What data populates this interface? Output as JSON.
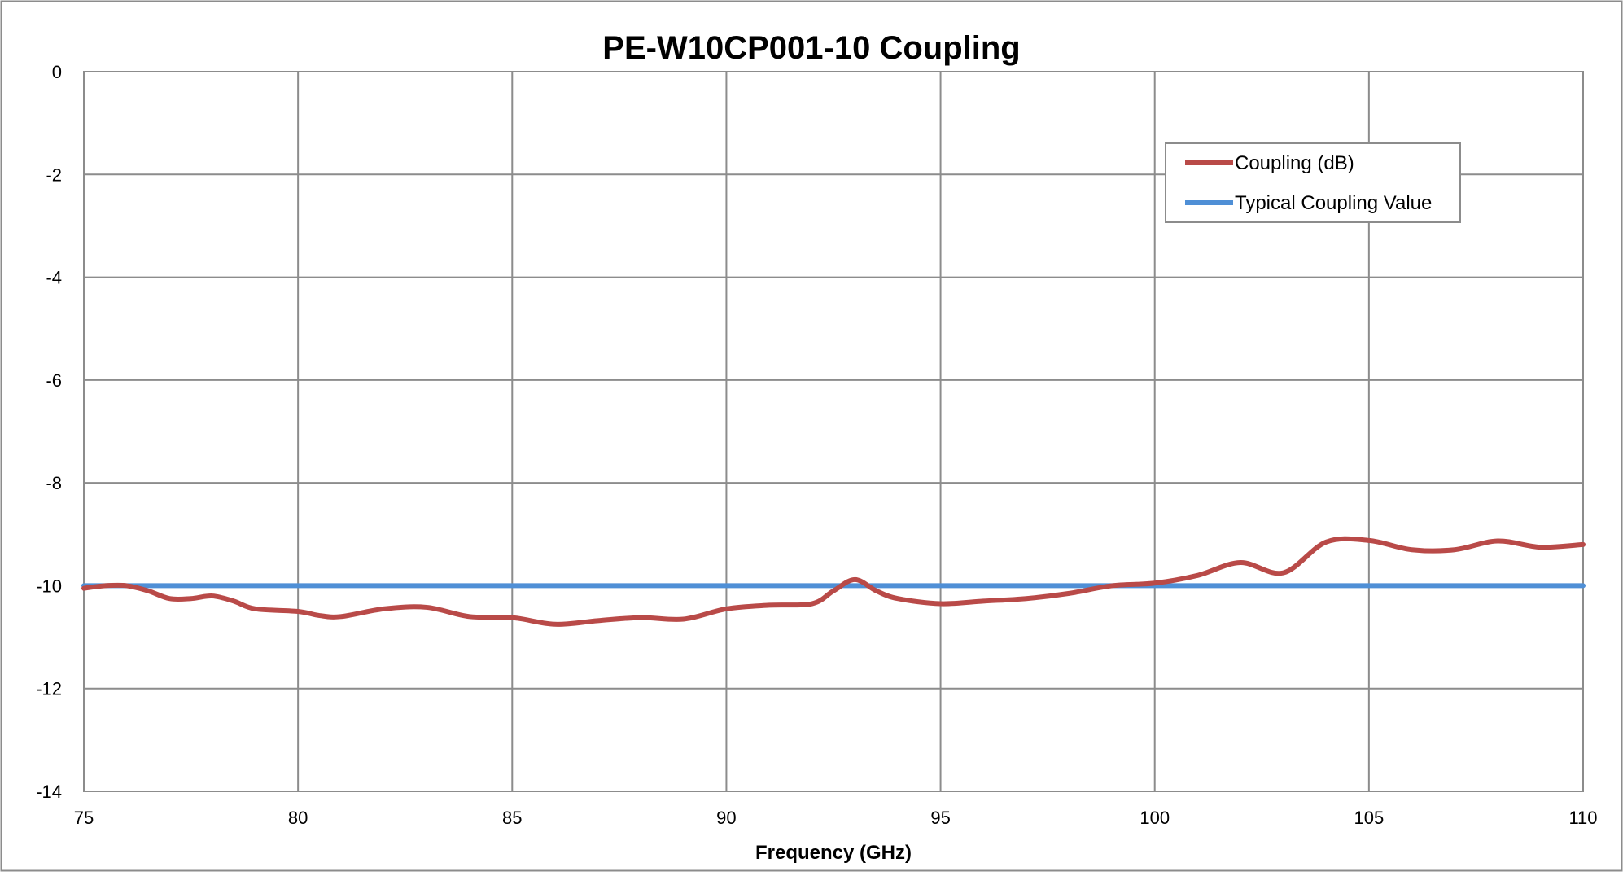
{
  "chart_data": {
    "type": "line",
    "title": "PE-W10CP001-10 Coupling",
    "xlabel": "Frequency (GHz)",
    "ylabel": "",
    "xlim": [
      75,
      110
    ],
    "ylim": [
      -14,
      0
    ],
    "xticks": [
      75,
      80,
      85,
      90,
      95,
      100,
      105,
      110
    ],
    "yticks": [
      0,
      -2,
      -4,
      -6,
      -8,
      -10,
      -12,
      -14
    ],
    "grid": true,
    "legend_position": "top-right",
    "series": [
      {
        "name": "Coupling (dB)",
        "color": "#b94a48",
        "x": [
          75,
          75.5,
          76,
          76.5,
          77,
          77.5,
          78,
          78.5,
          79,
          80,
          80.5,
          81,
          82,
          83,
          84,
          85,
          86,
          87,
          88,
          89,
          90,
          91,
          92,
          92.5,
          93,
          93.5,
          94,
          95,
          96,
          97,
          98,
          99,
          100,
          101,
          102,
          103,
          104,
          105,
          106,
          107,
          108,
          109,
          110
        ],
        "y": [
          -10.05,
          -10.0,
          -10.0,
          -10.1,
          -10.25,
          -10.25,
          -10.2,
          -10.3,
          -10.45,
          -10.5,
          -10.58,
          -10.6,
          -10.45,
          -10.42,
          -10.6,
          -10.62,
          -10.75,
          -10.68,
          -10.62,
          -10.65,
          -10.45,
          -10.38,
          -10.35,
          -10.1,
          -9.88,
          -10.1,
          -10.25,
          -10.35,
          -10.3,
          -10.25,
          -10.15,
          -10.0,
          -9.95,
          -9.8,
          -9.55,
          -9.75,
          -9.15,
          -9.12,
          -9.3,
          -9.3,
          -9.13,
          -9.25,
          -9.2
        ]
      },
      {
        "name": "Typical Coupling Value",
        "color": "#4f8fd6",
        "x": [
          75,
          110
        ],
        "y": [
          -10,
          -10
        ]
      }
    ]
  }
}
